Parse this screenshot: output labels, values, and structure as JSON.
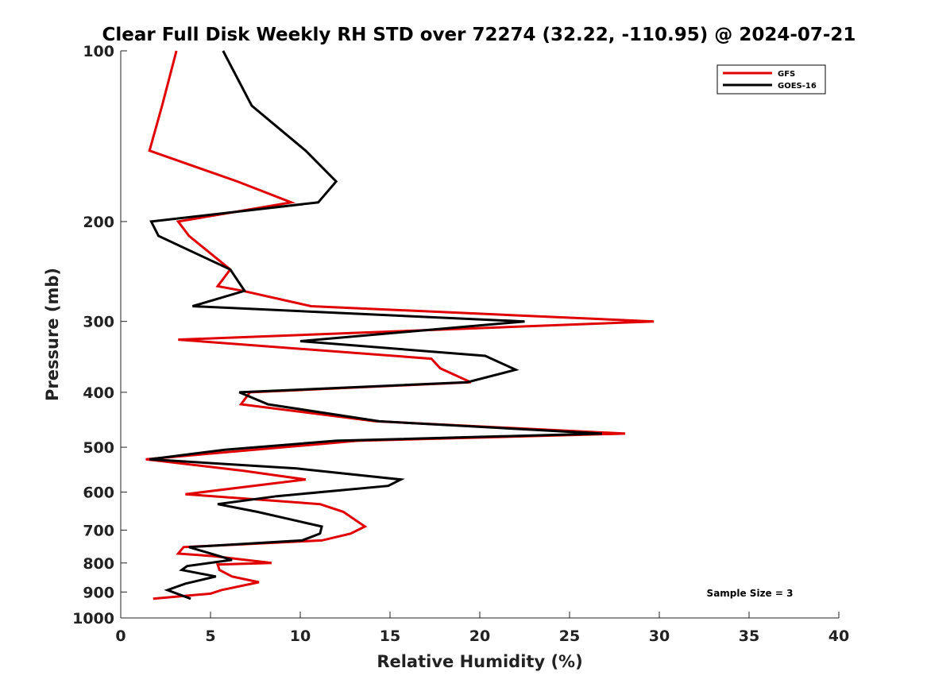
{
  "chart_data": {
    "type": "line",
    "title": "Clear Full Disk Weekly RH STD over 72274 (32.22, -110.95) @ 2024-07-21",
    "xlabel": "Relative Humidity (%)",
    "ylabel": "Pressure (mb)",
    "xlim": [
      0,
      40
    ],
    "ylim": [
      1000,
      100
    ],
    "y_scale": "log",
    "x_ticks": [
      0,
      5,
      10,
      15,
      20,
      25,
      30,
      35,
      40
    ],
    "x_tick_labels": [
      "0",
      "5",
      "10",
      "15",
      "20",
      "25",
      "30",
      "35",
      "40"
    ],
    "y_ticks": [
      100,
      200,
      300,
      400,
      500,
      600,
      700,
      800,
      900,
      1000
    ],
    "y_tick_labels": [
      "100",
      "200",
      "300",
      "400",
      "500",
      "600",
      "700",
      "800",
      "900",
      "1000"
    ],
    "grid": false,
    "legend_position": "top-right",
    "annotation": "Sample Size = 3",
    "series": [
      {
        "name": "GFS",
        "color": "#e00000",
        "points": [
          [
            3.1,
            100
          ],
          [
            2.3,
            125
          ],
          [
            1.6,
            150
          ],
          [
            6.5,
            170
          ],
          [
            9.5,
            185
          ],
          [
            3.2,
            200
          ],
          [
            3.8,
            212
          ],
          [
            6.1,
            243
          ],
          [
            5.4,
            260
          ],
          [
            6.8,
            265
          ],
          [
            10.6,
            282
          ],
          [
            29.7,
            300
          ],
          [
            3.2,
            323
          ],
          [
            17.3,
            349
          ],
          [
            17.8,
            363
          ],
          [
            19.5,
            384
          ],
          [
            7.2,
            400
          ],
          [
            6.7,
            420
          ],
          [
            14.2,
            450
          ],
          [
            28.1,
            473
          ],
          [
            13.2,
            487
          ],
          [
            1.4,
            525
          ],
          [
            6.8,
            550
          ],
          [
            10.3,
            570
          ],
          [
            3.6,
            605
          ],
          [
            11.1,
            630
          ],
          [
            12.4,
            650
          ],
          [
            13.6,
            690
          ],
          [
            12.8,
            710
          ],
          [
            11.2,
            730
          ],
          [
            3.5,
            750
          ],
          [
            3.2,
            770
          ],
          [
            5.2,
            778
          ],
          [
            8.4,
            800
          ],
          [
            5.4,
            805
          ],
          [
            5.5,
            823
          ],
          [
            6.2,
            845
          ],
          [
            7.7,
            865
          ],
          [
            5.6,
            893
          ],
          [
            5.0,
            906
          ],
          [
            1.8,
            925
          ]
        ]
      },
      {
        "name": "GOES-16",
        "color": "#000000",
        "points": [
          [
            5.7,
            100
          ],
          [
            7.3,
            125
          ],
          [
            10.3,
            150
          ],
          [
            12.0,
            170
          ],
          [
            11.0,
            185
          ],
          [
            1.7,
            200
          ],
          [
            2.1,
            212
          ],
          [
            6.1,
            243
          ],
          [
            6.9,
            265
          ],
          [
            4.0,
            282
          ],
          [
            22.5,
            300
          ],
          [
            10.0,
            325
          ],
          [
            20.3,
            345
          ],
          [
            22.0,
            365
          ],
          [
            19.3,
            384
          ],
          [
            6.6,
            400
          ],
          [
            8.2,
            420
          ],
          [
            14.4,
            450
          ],
          [
            26.8,
            473
          ],
          [
            12.0,
            487
          ],
          [
            5.8,
            505
          ],
          [
            1.6,
            525
          ],
          [
            9.8,
            545
          ],
          [
            15.6,
            570
          ],
          [
            14.9,
            585
          ],
          [
            8.7,
            610
          ],
          [
            5.4,
            630
          ],
          [
            7.6,
            650
          ],
          [
            11.2,
            690
          ],
          [
            11.1,
            710
          ],
          [
            10.1,
            730
          ],
          [
            3.8,
            750
          ],
          [
            6.2,
            790
          ],
          [
            3.7,
            810
          ],
          [
            3.4,
            823
          ],
          [
            5.3,
            845
          ],
          [
            3.6,
            870
          ],
          [
            2.6,
            893
          ],
          [
            3.9,
            925
          ]
        ]
      }
    ]
  }
}
